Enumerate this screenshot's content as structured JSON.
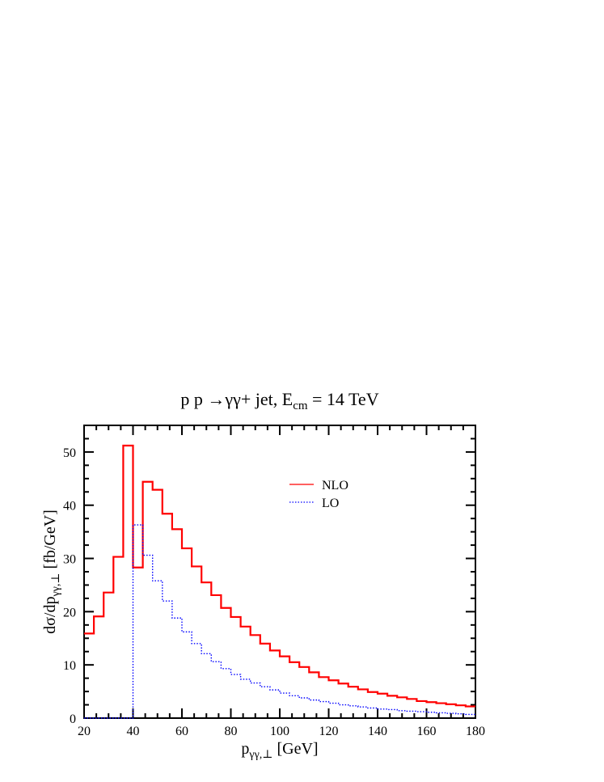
{
  "chart_data": {
    "type": "step",
    "title": {
      "prefix": "p p →γγ+ jet, E",
      "sub": "cm",
      "suffix": " = 14 TeV"
    },
    "xlabel": {
      "main": "p",
      "sub": "γγ,⊥",
      "suffix": " [GeV]"
    },
    "ylabel": {
      "prefix": "dσ/dp",
      "sub": "γγ,⊥",
      "suffix": " [fb/GeV]"
    },
    "xlim": [
      20,
      180
    ],
    "ylim": [
      0,
      55
    ],
    "xticks": [
      20,
      40,
      60,
      80,
      100,
      120,
      140,
      160,
      180
    ],
    "yticks": [
      0,
      10,
      20,
      30,
      40,
      50
    ],
    "bin_width": 4,
    "legend_position": "upper-right",
    "series": [
      {
        "name": "NLO",
        "color": "#ff0000",
        "style": "solid",
        "bins_start": 20,
        "values": [
          15.9,
          19.1,
          23.6,
          30.3,
          51.2,
          28.3,
          44.4,
          42.9,
          38.4,
          35.5,
          31.9,
          28.5,
          25.5,
          23.1,
          20.7,
          19.0,
          17.2,
          15.6,
          14.0,
          12.7,
          11.6,
          10.5,
          9.6,
          8.6,
          7.7,
          7.1,
          6.5,
          5.9,
          5.4,
          4.9,
          4.6,
          4.2,
          3.9,
          3.6,
          3.2,
          3.0,
          2.8,
          2.6,
          2.4,
          2.2
        ]
      },
      {
        "name": "LO",
        "color": "#0000ff",
        "style": "dotted",
        "bins_start": 20,
        "values": [
          0,
          0,
          0,
          0,
          0,
          36.3,
          30.6,
          25.8,
          22.0,
          18.8,
          16.2,
          14.0,
          12.1,
          10.6,
          9.3,
          8.2,
          7.3,
          6.6,
          5.9,
          5.3,
          4.7,
          4.2,
          3.8,
          3.4,
          3.1,
          2.8,
          2.5,
          2.3,
          2.1,
          1.9,
          1.7,
          1.6,
          1.4,
          1.3,
          1.2,
          1.1,
          1.0,
          0.9,
          0.8,
          0.7
        ]
      }
    ]
  }
}
